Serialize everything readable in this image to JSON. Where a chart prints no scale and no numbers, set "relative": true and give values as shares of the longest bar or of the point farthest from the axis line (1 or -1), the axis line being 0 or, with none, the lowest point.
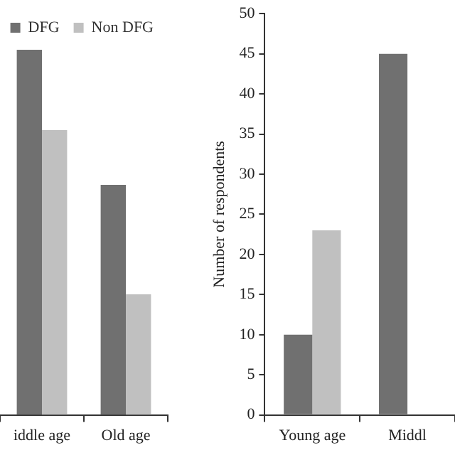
{
  "chart_data": [
    {
      "type": "bar",
      "relative": true,
      "categories": [
        "iddle age",
        "Old age"
      ],
      "series": [
        {
          "name": "DFG",
          "color": "#707070",
          "values": [
            1,
            0.63
          ]
        },
        {
          "name": "Non DFG",
          "color": "#c0c0c0",
          "values": [
            0.78,
            0.33
          ]
        }
      ],
      "legend": "top right",
      "grid": false
    },
    {
      "type": "bar",
      "ylabel": "Number of respondents",
      "categories": [
        "Young age",
        "Middl"
      ],
      "series": [
        {
          "color": "#707070",
          "values": [
            10,
            45
          ]
        },
        {
          "color": "#c0c0c0",
          "values": [
            23,
            null
          ]
        }
      ],
      "ylim": [
        0,
        50
      ],
      "yticks": [
        0,
        5,
        10,
        15,
        20,
        25,
        30,
        35,
        40,
        45,
        50
      ],
      "legend": false,
      "grid": false
    }
  ]
}
